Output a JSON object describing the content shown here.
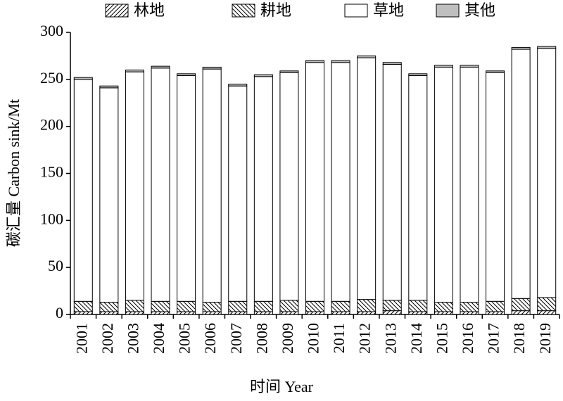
{
  "chart_data": {
    "type": "stacked_bar",
    "x_label": "时间 Year",
    "y_label": "碳汇量 Carbon sink/Mt",
    "categories": [
      "2001",
      "2002",
      "2003",
      "2004",
      "2005",
      "2006",
      "2007",
      "2008",
      "2009",
      "2010",
      "2011",
      "2012",
      "2013",
      "2014",
      "2015",
      "2016",
      "2017",
      "2018",
      "2019"
    ],
    "series": [
      {
        "name": "林地",
        "color": "#ffffff",
        "hatch": "forward",
        "values": [
          3,
          3,
          3,
          3,
          3,
          3,
          3,
          3,
          3,
          3,
          3,
          3,
          4,
          3,
          3,
          3,
          3,
          4,
          4
        ]
      },
      {
        "name": "耕地",
        "color": "#ffffff",
        "hatch": "backward",
        "values": [
          11,
          10,
          12,
          11,
          11,
          10,
          11,
          11,
          12,
          11,
          11,
          13,
          11,
          12,
          10,
          10,
          11,
          13,
          14
        ]
      },
      {
        "name": "草地",
        "color": "#ffffff",
        "hatch": "none",
        "values": [
          236,
          228,
          243,
          248,
          240,
          248,
          229,
          239,
          242,
          254,
          254,
          257,
          251,
          239,
          250,
          250,
          243,
          265,
          265
        ]
      },
      {
        "name": "其他",
        "color": "#bfbfbf",
        "hatch": "none",
        "values": [
          2,
          2,
          2,
          2,
          2,
          2,
          2,
          2,
          2,
          2,
          2,
          2,
          2,
          2,
          2,
          2,
          2,
          2,
          2
        ]
      }
    ],
    "ylim": [
      0,
      300
    ],
    "yticks": [
      0,
      50,
      100,
      150,
      200,
      250,
      300
    ],
    "grid": false,
    "legend": "top"
  }
}
